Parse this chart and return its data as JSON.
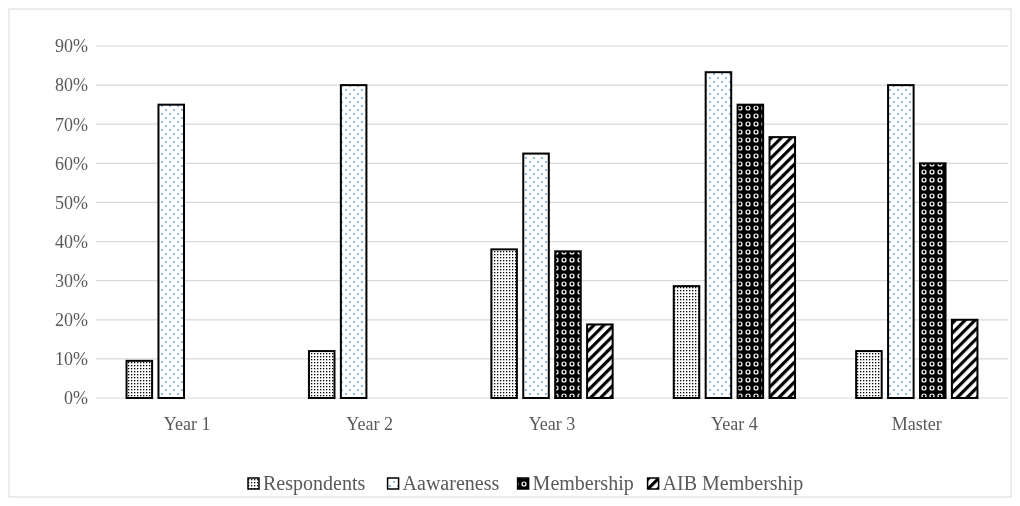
{
  "chart_data": {
    "type": "bar",
    "categories": [
      "Year 1",
      "Year 2",
      "Year 3",
      "Year 4",
      "Master"
    ],
    "series": [
      {
        "name": "Respondents",
        "color": "#000000",
        "values": [
          9.5,
          12,
          38,
          28.6,
          12
        ]
      },
      {
        "name": "Aawareness",
        "color": "#000000",
        "values": [
          75,
          80,
          62.5,
          83.3,
          80
        ]
      },
      {
        "name": "Membership",
        "color": "#000000",
        "values": [
          null,
          null,
          37.5,
          75,
          60
        ]
      },
      {
        "name": "AIB Membership",
        "color": "#000000",
        "values": [
          null,
          null,
          18.8,
          66.7,
          20
        ]
      }
    ],
    "ylim": [
      0,
      90
    ],
    "yticks": [
      {
        "value": 0,
        "label": "0%"
      },
      {
        "value": 10,
        "label": "10%"
      },
      {
        "value": 20,
        "label": "20%"
      },
      {
        "value": 30,
        "label": "30%"
      },
      {
        "value": 40,
        "label": "40%"
      },
      {
        "value": 50,
        "label": "50%"
      },
      {
        "value": 60,
        "label": "60%"
      },
      {
        "value": 70,
        "label": "70%"
      },
      {
        "value": 80,
        "label": "80%"
      },
      {
        "value": 90,
        "label": "90%"
      }
    ],
    "grid": "y",
    "legend": "bottom"
  }
}
